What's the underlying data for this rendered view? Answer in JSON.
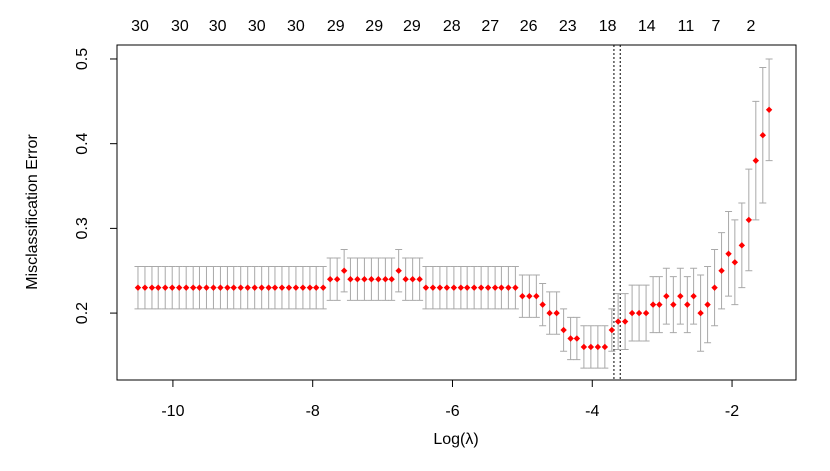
{
  "chart_data": {
    "type": "errorbar",
    "xlabel": "Log(λ)",
    "ylabel": "Misclassification Error",
    "x": [
      -10.5,
      -10.4,
      -10.3,
      -10.21,
      -10.11,
      -10.01,
      -9.91,
      -9.81,
      -9.71,
      -9.62,
      -9.52,
      -9.42,
      -9.32,
      -9.22,
      -9.13,
      -9.03,
      -8.93,
      -8.83,
      -8.73,
      -8.63,
      -8.54,
      -8.44,
      -8.34,
      -8.24,
      -8.14,
      -8.04,
      -7.95,
      -7.85,
      -7.75,
      -7.65,
      -7.55,
      -7.46,
      -7.36,
      -7.26,
      -7.16,
      -7.06,
      -6.96,
      -6.87,
      -6.77,
      -6.67,
      -6.57,
      -6.47,
      -6.38,
      -6.28,
      -6.18,
      -6.08,
      -5.98,
      -5.88,
      -5.79,
      -5.69,
      -5.59,
      -5.49,
      -5.39,
      -5.3,
      -5.2,
      -5.1,
      -5.0,
      -4.9,
      -4.8,
      -4.71,
      -4.61,
      -4.51,
      -4.41,
      -4.31,
      -4.22,
      -4.12,
      -4.02,
      -3.92,
      -3.82,
      -3.72,
      -3.63,
      -3.53,
      -3.43,
      -3.33,
      -3.23,
      -3.13,
      -3.04,
      -2.94,
      -2.84,
      -2.74,
      -2.64,
      -2.55,
      -2.45,
      -2.35,
      -2.25,
      -2.15,
      -2.05,
      -1.96,
      -1.86,
      -1.76,
      -1.66,
      -1.56,
      -1.47
    ],
    "values": [
      0.23,
      0.23,
      0.23,
      0.23,
      0.23,
      0.23,
      0.23,
      0.23,
      0.23,
      0.23,
      0.23,
      0.23,
      0.23,
      0.23,
      0.23,
      0.23,
      0.23,
      0.23,
      0.23,
      0.23,
      0.23,
      0.23,
      0.23,
      0.23,
      0.23,
      0.23,
      0.23,
      0.23,
      0.24,
      0.24,
      0.25,
      0.24,
      0.24,
      0.24,
      0.24,
      0.24,
      0.24,
      0.24,
      0.25,
      0.24,
      0.24,
      0.24,
      0.23,
      0.23,
      0.23,
      0.23,
      0.23,
      0.23,
      0.23,
      0.23,
      0.23,
      0.23,
      0.23,
      0.23,
      0.23,
      0.23,
      0.22,
      0.22,
      0.22,
      0.21,
      0.2,
      0.2,
      0.18,
      0.17,
      0.17,
      0.16,
      0.16,
      0.16,
      0.16,
      0.18,
      0.19,
      0.19,
      0.2,
      0.2,
      0.2,
      0.21,
      0.21,
      0.22,
      0.21,
      0.22,
      0.21,
      0.22,
      0.2,
      0.21,
      0.23,
      0.25,
      0.27,
      0.26,
      0.28,
      0.31,
      0.38,
      0.41,
      0.44
    ],
    "errors": [
      0.025,
      0.025,
      0.025,
      0.025,
      0.025,
      0.025,
      0.025,
      0.025,
      0.025,
      0.025,
      0.025,
      0.025,
      0.025,
      0.025,
      0.025,
      0.025,
      0.025,
      0.025,
      0.025,
      0.025,
      0.025,
      0.025,
      0.025,
      0.025,
      0.025,
      0.025,
      0.025,
      0.025,
      0.025,
      0.025,
      0.025,
      0.025,
      0.025,
      0.025,
      0.025,
      0.025,
      0.025,
      0.025,
      0.025,
      0.025,
      0.025,
      0.025,
      0.025,
      0.025,
      0.025,
      0.025,
      0.025,
      0.025,
      0.025,
      0.025,
      0.025,
      0.025,
      0.025,
      0.025,
      0.025,
      0.025,
      0.025,
      0.025,
      0.025,
      0.025,
      0.025,
      0.025,
      0.025,
      0.025,
      0.025,
      0.025,
      0.025,
      0.025,
      0.025,
      0.025,
      0.033,
      0.033,
      0.033,
      0.033,
      0.033,
      0.033,
      0.033,
      0.033,
      0.033,
      0.033,
      0.033,
      0.033,
      0.045,
      0.045,
      0.045,
      0.045,
      0.05,
      0.05,
      0.05,
      0.06,
      0.07,
      0.08,
      0.06
    ],
    "color": "#ff0000",
    "error_color": "#a9a9a9",
    "xlim": [
      -10.8,
      -1.085
    ],
    "ylim": [
      0.121,
      0.5165
    ],
    "xticks": [
      -10,
      -8,
      -6,
      -4,
      -2
    ],
    "yticks": [
      0.2,
      0.3,
      0.4,
      0.5
    ],
    "nzero": [
      30,
      30,
      30,
      30,
      30,
      29,
      29,
      29,
      28,
      27,
      26,
      23,
      18,
      14,
      11,
      7,
      2
    ],
    "nzero_x": [
      -10.47,
      -9.9,
      -9.36,
      -8.8,
      -8.24,
      -7.67,
      -7.12,
      -6.58,
      -6.01,
      -5.46,
      -4.91,
      -4.35,
      -3.78,
      -3.22,
      -2.66,
      -2.23,
      -1.73
    ],
    "vlines": [
      -3.69,
      -3.6
    ]
  }
}
